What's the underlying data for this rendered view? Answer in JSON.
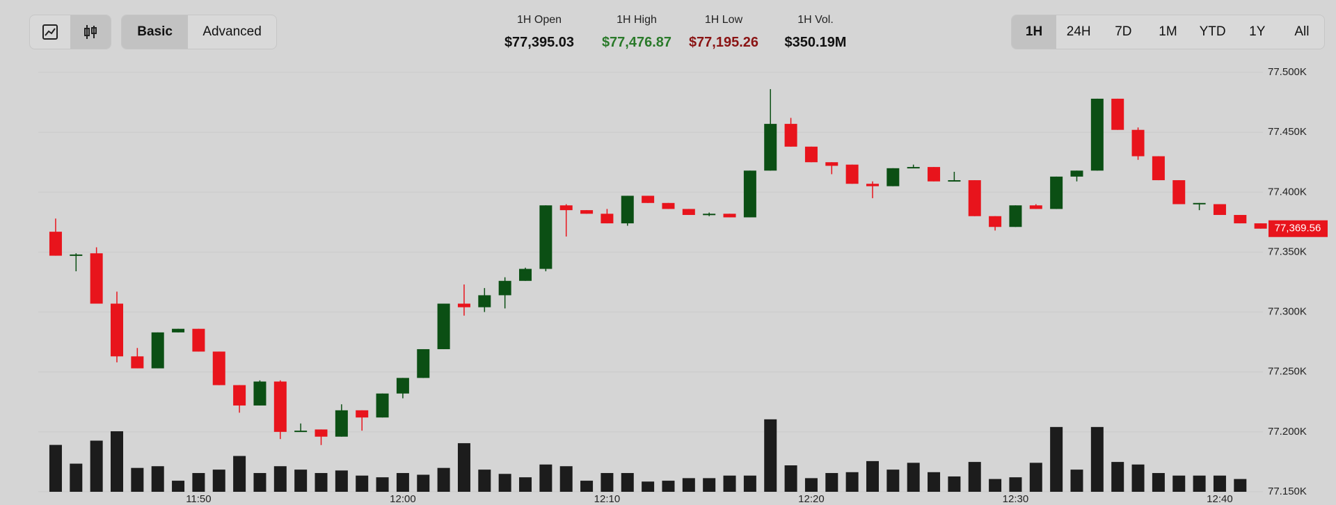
{
  "toolbar": {
    "views": [
      "Basic",
      "Advanced"
    ],
    "selected_view": 0,
    "ranges": [
      "1H",
      "24H",
      "7D",
      "1M",
      "YTD",
      "1Y",
      "All"
    ],
    "selected_range": 0
  },
  "stats": [
    {
      "label": "1H Open",
      "value": "$77,395.03",
      "color": "#111111"
    },
    {
      "label": "1H High",
      "value": "$77,476.87",
      "color": "#2a7a2a"
    },
    {
      "label": "1H Low",
      "value": "$77,195.26",
      "color": "#8a1414"
    },
    {
      "label": "1H Vol.",
      "value": "$350.19M",
      "color": "#111111"
    }
  ],
  "chart_data": {
    "type": "candlestick",
    "x": [
      "11:43",
      "11:44",
      "11:45",
      "11:46",
      "11:47",
      "11:48",
      "11:49",
      "11:50",
      "11:51",
      "11:52",
      "11:53",
      "11:54",
      "11:55",
      "11:56",
      "11:57",
      "11:58",
      "11:59",
      "12:00",
      "12:01",
      "12:02",
      "12:03",
      "12:04",
      "12:05",
      "12:06",
      "12:07",
      "12:08",
      "12:09",
      "12:10",
      "12:11",
      "12:12",
      "12:13",
      "12:14",
      "12:15",
      "12:16",
      "12:17",
      "12:18",
      "12:19",
      "12:20",
      "12:21",
      "12:22",
      "12:23",
      "12:24",
      "12:25",
      "12:26",
      "12:27",
      "12:28",
      "12:29",
      "12:30",
      "12:31",
      "12:32",
      "12:33",
      "12:34",
      "12:35",
      "12:36",
      "12:37",
      "12:38",
      "12:39",
      "12:40",
      "12:41",
      "12:42"
    ],
    "open": [
      77367,
      77347,
      77349,
      77307,
      77263,
      77253,
      77283,
      77286,
      77267,
      77239,
      77222,
      77242,
      77200,
      77202,
      77196,
      77218,
      77212,
      77232,
      77245,
      77269,
      77307,
      77304,
      77314,
      77326,
      77336,
      77389,
      77385,
      77382,
      77374,
      77397,
      77391,
      77386,
      77381,
      77382,
      77379,
      77418,
      77457,
      77438,
      77425,
      77423,
      77407,
      77405,
      77420,
      77421,
      77409,
      77410,
      77380,
      77371,
      77389,
      77386,
      77413,
      77418,
      77478,
      77452,
      77430,
      77410,
      77390,
      77390,
      77381,
      77374
    ],
    "high": [
      77378,
      77349,
      77354,
      77317,
      77270,
      77283,
      77286,
      77286,
      77267,
      77239,
      77243,
      77243,
      77207,
      77202,
      77223,
      77218,
      77232,
      77245,
      77269,
      77307,
      77323,
      77320,
      77329,
      77337,
      77389,
      77390,
      77385,
      77386,
      77397,
      77397,
      77391,
      77386,
      77383,
      77382,
      77418,
      77486,
      77462,
      77438,
      77425,
      77423,
      77409,
      77420,
      77423,
      77421,
      77417,
      77410,
      77380,
      77389,
      77390,
      77413,
      77418,
      77478,
      77478,
      77454,
      77430,
      77410,
      77391,
      77390,
      77381,
      77374
    ],
    "low": [
      77347,
      77334,
      77307,
      77258,
      77253,
      77253,
      77283,
      77267,
      77239,
      77216,
      77222,
      77194,
      77200,
      77189,
      77196,
      77201,
      77212,
      77228,
      77245,
      77269,
      77297,
      77300,
      77303,
      77326,
      77334,
      77363,
      77382,
      77374,
      77372,
      77391,
      77386,
      77381,
      77380,
      77379,
      77379,
      77418,
      77438,
      77425,
      77415,
      77407,
      77395,
      77405,
      77420,
      77409,
      77409,
      77380,
      77368,
      77371,
      77386,
      77386,
      77409,
      77418,
      77452,
      77427,
      77410,
      77390,
      77385,
      77381,
      77374,
      77369.56
    ],
    "close": [
      77347,
      77348,
      77307,
      77263,
      77253,
      77283,
      77286,
      77267,
      77239,
      77222,
      77242,
      77200,
      77201,
      77196,
      77218,
      77212,
      77232,
      77245,
      77269,
      77307,
      77304,
      77314,
      77326,
      77336,
      77389,
      77385,
      77382,
      77374,
      77397,
      77391,
      77386,
      77381,
      77382,
      77379,
      77418,
      77457,
      77438,
      77425,
      77422,
      77407,
      77405,
      77420,
      77421,
      77409,
      77410,
      77380,
      77371,
      77389,
      77386,
      77413,
      77418,
      77478,
      77452,
      77430,
      77410,
      77390,
      77391,
      77381,
      77374,
      77369.56
    ],
    "volume": [
      11,
      6.6,
      12,
      14.2,
      5.6,
      6,
      2.6,
      4.4,
      5.2,
      8.4,
      4.4,
      6,
      5.2,
      4.4,
      5,
      3.8,
      3.4,
      4.4,
      4,
      5.6,
      11.4,
      5.2,
      4.2,
      3.4,
      6.4,
      6,
      2.6,
      4.4,
      4.4,
      2.4,
      2.6,
      3.2,
      3.2,
      3.8,
      3.8,
      17,
      6.2,
      3.2,
      4.4,
      4.6,
      7.2,
      5.2,
      6.8,
      4.6,
      3.6,
      7,
      3,
      3.4,
      6.8,
      15.2,
      5.2,
      15.2,
      7,
      6.4,
      4.4,
      3.8,
      3.8,
      3.8,
      3,
      null
    ],
    "up_color": "#0b4f14",
    "down_color": "#e8141c",
    "volume_color": "#1c1c1c",
    "xlim": [
      "11:42",
      "12:43"
    ],
    "xticks": [
      "11:50",
      "12:00",
      "12:10",
      "12:20",
      "12:30",
      "12:40"
    ],
    "ylim": [
      77150,
      77500
    ],
    "yticks": [
      {
        "value": 77500,
        "label": "77.500K"
      },
      {
        "value": 77450,
        "label": "77.450K"
      },
      {
        "value": 77400,
        "label": "77.400K"
      },
      {
        "value": 77350,
        "label": "77.350K"
      },
      {
        "value": 77300,
        "label": "77.300K"
      },
      {
        "value": 77250,
        "label": "77.250K"
      },
      {
        "value": 77200,
        "label": "77.200K"
      },
      {
        "value": 77150,
        "label": "77.150K"
      }
    ],
    "y2lim": [
      0,
      98.4
    ],
    "last_price": {
      "value": 77369.56,
      "label": "77,369.56"
    },
    "grid": true
  }
}
